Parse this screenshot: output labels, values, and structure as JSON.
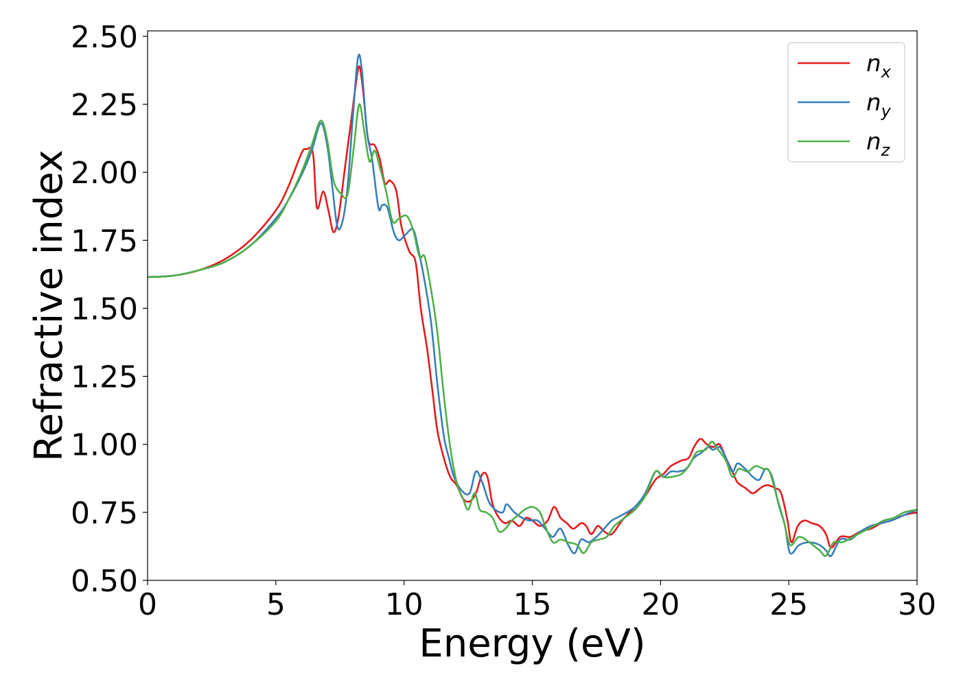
{
  "chart_data": {
    "type": "line",
    "xlabel": "Energy (eV)",
    "ylabel": "Refractive index",
    "xlim": [
      0,
      30
    ],
    "ylim": [
      0.5,
      2.52
    ],
    "xticks": [
      "0",
      "5",
      "10",
      "15",
      "20",
      "25",
      "30"
    ],
    "yticks": [
      "0.50",
      "0.75",
      "1.00",
      "1.25",
      "1.50",
      "1.75",
      "2.00",
      "2.25",
      "2.50"
    ],
    "grid": false,
    "legend_position": "top-right",
    "series": [
      {
        "name": "n_x",
        "color": "#e41a1c",
        "points": [
          [
            0,
            1.615
          ],
          [
            1,
            1.62
          ],
          [
            2,
            1.64
          ],
          [
            3,
            1.68
          ],
          [
            4,
            1.75
          ],
          [
            5,
            1.86
          ],
          [
            5.5,
            1.95
          ],
          [
            6,
            2.07
          ],
          [
            6.2,
            2.085
          ],
          [
            6.45,
            2.07
          ],
          [
            6.6,
            1.87
          ],
          [
            6.85,
            1.93
          ],
          [
            7.05,
            1.86
          ],
          [
            7.25,
            1.78
          ],
          [
            7.45,
            1.84
          ],
          [
            7.7,
            2.02
          ],
          [
            7.95,
            2.2
          ],
          [
            8.1,
            2.31
          ],
          [
            8.25,
            2.39
          ],
          [
            8.4,
            2.3
          ],
          [
            8.6,
            2.12
          ],
          [
            8.85,
            2.1
          ],
          [
            9.05,
            2.05
          ],
          [
            9.25,
            1.96
          ],
          [
            9.45,
            1.97
          ],
          [
            9.7,
            1.93
          ],
          [
            9.9,
            1.8
          ],
          [
            10.2,
            1.71
          ],
          [
            10.45,
            1.67
          ],
          [
            10.65,
            1.5
          ],
          [
            10.9,
            1.35
          ],
          [
            11.1,
            1.2
          ],
          [
            11.3,
            1.05
          ],
          [
            11.55,
            0.95
          ],
          [
            11.8,
            0.88
          ],
          [
            12.05,
            0.85
          ],
          [
            12.3,
            0.8
          ],
          [
            12.55,
            0.79
          ],
          [
            12.8,
            0.82
          ],
          [
            13.05,
            0.89
          ],
          [
            13.25,
            0.88
          ],
          [
            13.45,
            0.78
          ],
          [
            13.7,
            0.73
          ],
          [
            13.95,
            0.71
          ],
          [
            14.2,
            0.72
          ],
          [
            14.5,
            0.7
          ],
          [
            14.75,
            0.73
          ],
          [
            15.0,
            0.72
          ],
          [
            15.3,
            0.7
          ],
          [
            15.6,
            0.72
          ],
          [
            15.85,
            0.77
          ],
          [
            16.1,
            0.73
          ],
          [
            16.35,
            0.71
          ],
          [
            16.6,
            0.69
          ],
          [
            16.9,
            0.71
          ],
          [
            17.1,
            0.7
          ],
          [
            17.3,
            0.67
          ],
          [
            17.55,
            0.7
          ],
          [
            17.8,
            0.68
          ],
          [
            18.1,
            0.67
          ],
          [
            18.5,
            0.72
          ],
          [
            19.0,
            0.77
          ],
          [
            19.4,
            0.81
          ],
          [
            19.8,
            0.87
          ],
          [
            20.1,
            0.89
          ],
          [
            20.4,
            0.92
          ],
          [
            20.8,
            0.94
          ],
          [
            21.1,
            0.95
          ],
          [
            21.3,
            0.99
          ],
          [
            21.55,
            1.02
          ],
          [
            21.8,
            1.0
          ],
          [
            22.05,
            0.99
          ],
          [
            22.3,
            1.0
          ],
          [
            22.55,
            0.95
          ],
          [
            22.8,
            0.9
          ],
          [
            23.0,
            0.86
          ],
          [
            23.3,
            0.84
          ],
          [
            23.6,
            0.82
          ],
          [
            23.9,
            0.84
          ],
          [
            24.15,
            0.85
          ],
          [
            24.45,
            0.84
          ],
          [
            24.7,
            0.82
          ],
          [
            24.95,
            0.72
          ],
          [
            25.1,
            0.64
          ],
          [
            25.35,
            0.7
          ],
          [
            25.6,
            0.72
          ],
          [
            25.9,
            0.71
          ],
          [
            26.2,
            0.7
          ],
          [
            26.45,
            0.67
          ],
          [
            26.65,
            0.62
          ],
          [
            27.0,
            0.66
          ],
          [
            27.4,
            0.66
          ],
          [
            27.8,
            0.68
          ],
          [
            28.2,
            0.69
          ],
          [
            28.6,
            0.71
          ],
          [
            29.0,
            0.72
          ],
          [
            29.5,
            0.74
          ],
          [
            30,
            0.75
          ]
        ]
      },
      {
        "name": "n_y",
        "color": "#377eb8",
        "points": [
          [
            0,
            1.615
          ],
          [
            1,
            1.62
          ],
          [
            2,
            1.64
          ],
          [
            3,
            1.67
          ],
          [
            4,
            1.73
          ],
          [
            5,
            1.83
          ],
          [
            5.5,
            1.9
          ],
          [
            6,
            1.99
          ],
          [
            6.4,
            2.08
          ],
          [
            6.75,
            2.18
          ],
          [
            7.0,
            2.1
          ],
          [
            7.2,
            1.95
          ],
          [
            7.4,
            1.8
          ],
          [
            7.6,
            1.82
          ],
          [
            7.8,
            1.95
          ],
          [
            8.0,
            2.2
          ],
          [
            8.2,
            2.42
          ],
          [
            8.35,
            2.38
          ],
          [
            8.55,
            2.15
          ],
          [
            8.75,
            2.05
          ],
          [
            9.0,
            1.87
          ],
          [
            9.15,
            1.88
          ],
          [
            9.35,
            1.87
          ],
          [
            9.6,
            1.78
          ],
          [
            9.8,
            1.75
          ],
          [
            10.05,
            1.77
          ],
          [
            10.35,
            1.79
          ],
          [
            10.55,
            1.72
          ],
          [
            10.8,
            1.6
          ],
          [
            11.05,
            1.45
          ],
          [
            11.3,
            1.22
          ],
          [
            11.55,
            1.03
          ],
          [
            11.75,
            0.95
          ],
          [
            11.95,
            0.88
          ],
          [
            12.25,
            0.83
          ],
          [
            12.55,
            0.82
          ],
          [
            12.8,
            0.9
          ],
          [
            13.05,
            0.86
          ],
          [
            13.3,
            0.79
          ],
          [
            13.55,
            0.76
          ],
          [
            13.85,
            0.75
          ],
          [
            14.0,
            0.78
          ],
          [
            14.3,
            0.75
          ],
          [
            14.6,
            0.73
          ],
          [
            14.9,
            0.72
          ],
          [
            15.2,
            0.72
          ],
          [
            15.5,
            0.69
          ],
          [
            15.8,
            0.66
          ],
          [
            16.1,
            0.69
          ],
          [
            16.4,
            0.63
          ],
          [
            16.65,
            0.6
          ],
          [
            16.9,
            0.65
          ],
          [
            17.2,
            0.64
          ],
          [
            17.5,
            0.66
          ],
          [
            17.8,
            0.69
          ],
          [
            18.1,
            0.72
          ],
          [
            18.5,
            0.74
          ],
          [
            19.0,
            0.77
          ],
          [
            19.4,
            0.82
          ],
          [
            19.8,
            0.9
          ],
          [
            20.1,
            0.88
          ],
          [
            20.4,
            0.9
          ],
          [
            20.7,
            0.9
          ],
          [
            21.0,
            0.91
          ],
          [
            21.3,
            0.95
          ],
          [
            21.6,
            0.97
          ],
          [
            21.85,
            0.99
          ],
          [
            22.05,
            0.98
          ],
          [
            22.3,
            0.99
          ],
          [
            22.55,
            0.95
          ],
          [
            22.8,
            0.9
          ],
          [
            23.0,
            0.93
          ],
          [
            23.3,
            0.91
          ],
          [
            23.6,
            0.88
          ],
          [
            23.85,
            0.87
          ],
          [
            24.1,
            0.91
          ],
          [
            24.35,
            0.88
          ],
          [
            24.6,
            0.78
          ],
          [
            24.85,
            0.7
          ],
          [
            25.05,
            0.6
          ],
          [
            25.4,
            0.63
          ],
          [
            25.8,
            0.64
          ],
          [
            26.2,
            0.63
          ],
          [
            26.45,
            0.61
          ],
          [
            26.65,
            0.59
          ],
          [
            27.0,
            0.65
          ],
          [
            27.4,
            0.65
          ],
          [
            27.8,
            0.68
          ],
          [
            28.2,
            0.7
          ],
          [
            28.6,
            0.71
          ],
          [
            29.0,
            0.72
          ],
          [
            29.5,
            0.74
          ],
          [
            30,
            0.76
          ]
        ]
      },
      {
        "name": "n_z",
        "color": "#4daf4a",
        "points": [
          [
            0,
            1.615
          ],
          [
            1,
            1.62
          ],
          [
            2,
            1.64
          ],
          [
            3,
            1.67
          ],
          [
            4,
            1.73
          ],
          [
            5,
            1.82
          ],
          [
            5.5,
            1.9
          ],
          [
            6,
            2.0
          ],
          [
            6.4,
            2.1
          ],
          [
            6.75,
            2.19
          ],
          [
            7.0,
            2.12
          ],
          [
            7.25,
            1.97
          ],
          [
            7.55,
            1.92
          ],
          [
            7.8,
            1.92
          ],
          [
            8.05,
            2.1
          ],
          [
            8.25,
            2.25
          ],
          [
            8.45,
            2.15
          ],
          [
            8.65,
            2.04
          ],
          [
            8.85,
            2.08
          ],
          [
            9.05,
            2.02
          ],
          [
            9.3,
            1.93
          ],
          [
            9.55,
            1.82
          ],
          [
            9.8,
            1.83
          ],
          [
            10.1,
            1.84
          ],
          [
            10.35,
            1.79
          ],
          [
            10.6,
            1.69
          ],
          [
            10.8,
            1.69
          ],
          [
            11.05,
            1.57
          ],
          [
            11.3,
            1.41
          ],
          [
            11.55,
            1.18
          ],
          [
            11.8,
            0.99
          ],
          [
            12.05,
            0.86
          ],
          [
            12.3,
            0.8
          ],
          [
            12.5,
            0.76
          ],
          [
            12.75,
            0.82
          ],
          [
            12.95,
            0.76
          ],
          [
            13.2,
            0.75
          ],
          [
            13.45,
            0.73
          ],
          [
            13.7,
            0.68
          ],
          [
            13.95,
            0.69
          ],
          [
            14.2,
            0.72
          ],
          [
            14.45,
            0.74
          ],
          [
            14.7,
            0.76
          ],
          [
            15.0,
            0.77
          ],
          [
            15.3,
            0.75
          ],
          [
            15.5,
            0.7
          ],
          [
            15.8,
            0.64
          ],
          [
            16.1,
            0.65
          ],
          [
            16.4,
            0.64
          ],
          [
            16.75,
            0.63
          ],
          [
            17.0,
            0.6
          ],
          [
            17.3,
            0.64
          ],
          [
            17.6,
            0.65
          ],
          [
            17.9,
            0.66
          ],
          [
            18.2,
            0.7
          ],
          [
            18.6,
            0.73
          ],
          [
            19.0,
            0.76
          ],
          [
            19.4,
            0.81
          ],
          [
            19.8,
            0.9
          ],
          [
            20.1,
            0.88
          ],
          [
            20.4,
            0.88
          ],
          [
            20.8,
            0.89
          ],
          [
            21.1,
            0.92
          ],
          [
            21.4,
            0.97
          ],
          [
            21.75,
            0.98
          ],
          [
            22.0,
            1.01
          ],
          [
            22.25,
            0.98
          ],
          [
            22.55,
            0.94
          ],
          [
            22.8,
            0.88
          ],
          [
            23.05,
            0.91
          ],
          [
            23.4,
            0.9
          ],
          [
            23.7,
            0.92
          ],
          [
            24.0,
            0.91
          ],
          [
            24.25,
            0.9
          ],
          [
            24.55,
            0.8
          ],
          [
            24.8,
            0.72
          ],
          [
            25.05,
            0.63
          ],
          [
            25.4,
            0.66
          ],
          [
            25.8,
            0.64
          ],
          [
            26.2,
            0.61
          ],
          [
            26.45,
            0.59
          ],
          [
            26.75,
            0.64
          ],
          [
            27.1,
            0.64
          ],
          [
            27.5,
            0.66
          ],
          [
            27.9,
            0.68
          ],
          [
            28.3,
            0.7
          ],
          [
            28.7,
            0.72
          ],
          [
            29.1,
            0.73
          ],
          [
            29.5,
            0.75
          ],
          [
            30,
            0.76
          ]
        ]
      }
    ]
  }
}
